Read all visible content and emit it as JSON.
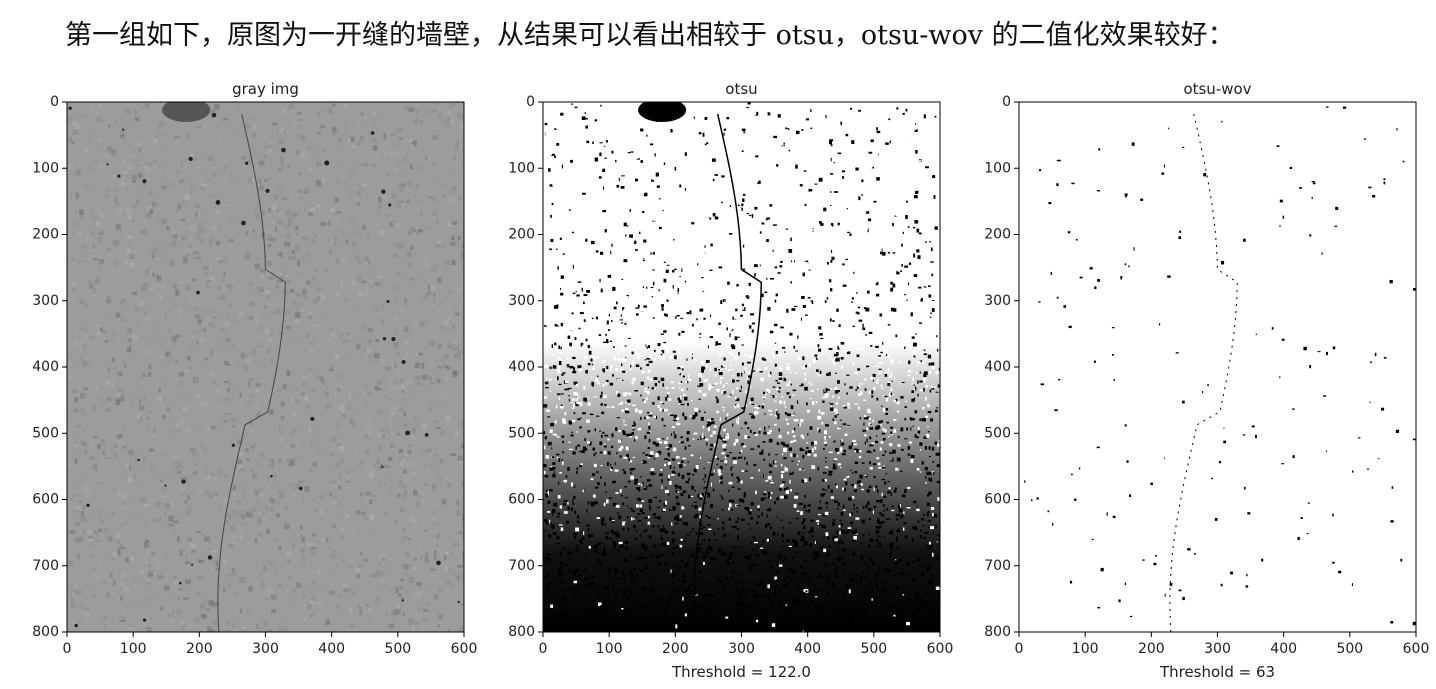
{
  "caption": "第一组如下，原图为一开缝的墙壁，从结果可以看出相较于 otsu，otsu-wov 的二值化效果较好：",
  "panels": [
    {
      "title": "gray img",
      "xlim": [
        0,
        600
      ],
      "ylim": [
        800,
        0
      ],
      "xticks": [
        0,
        100,
        200,
        300,
        400,
        500,
        600
      ],
      "yticks": [
        0,
        100,
        200,
        300,
        400,
        500,
        600,
        700,
        800
      ]
    },
    {
      "title": "otsu",
      "xlabel": "Threshold = 122.0",
      "xlim": [
        0,
        600
      ],
      "ylim": [
        800,
        0
      ],
      "xticks": [
        0,
        100,
        200,
        300,
        400,
        500,
        600
      ],
      "yticks": [
        0,
        100,
        200,
        300,
        400,
        500,
        600,
        700,
        800
      ]
    },
    {
      "title": "otsu-wov",
      "xlabel": "Threshold = 63",
      "xlim": [
        0,
        600
      ],
      "ylim": [
        800,
        0
      ],
      "xticks": [
        0,
        100,
        200,
        300,
        400,
        500,
        600
      ],
      "yticks": [
        0,
        100,
        200,
        300,
        400,
        500,
        600,
        700,
        800
      ]
    }
  ]
}
